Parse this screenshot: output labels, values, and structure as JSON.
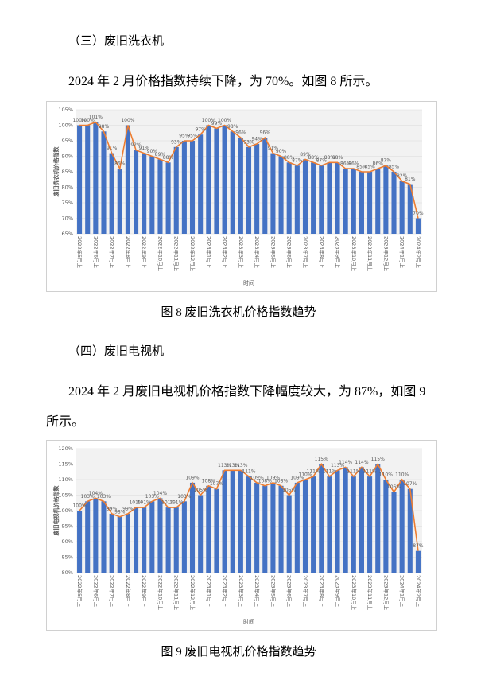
{
  "section3": {
    "heading": "（三）废旧洗衣机",
    "paragraph": "2024 年 2 月价格指数持续下降，为 70%。如图 8 所示。",
    "caption": "图 8  废旧洗衣机价格指数趋势"
  },
  "section4": {
    "heading": "（四）废旧电视机",
    "paragraph": "2024 年 2 月废旧电视机价格指数下降幅度较大，为 87%，如图 9 所示。",
    "caption": "图 9  废旧电视机价格指数趋势"
  },
  "chart_data": [
    {
      "type": "bar_line",
      "ylabel": "废旧洗衣机价格指数",
      "xlabel": "时间",
      "categories": [
        "2022年5月上",
        null,
        "2022年6月上",
        null,
        "2022年7月上",
        null,
        "2022年8月上",
        null,
        "2022年9月上",
        null,
        "2022年10月上",
        null,
        "2022年11月上",
        null,
        "2022年12月上",
        null,
        "2023年1月上",
        null,
        "2023年2月上",
        null,
        "2023年3月上",
        null,
        "2023年4月上",
        null,
        "2023年5月上",
        null,
        "2023年6月上",
        null,
        "2023年7月上",
        null,
        "2023年8月上",
        null,
        "2023年9月上",
        null,
        "2023年10月上",
        null,
        "2023年11月上",
        null,
        "2023年12月上",
        null,
        "2024年1月上",
        null,
        "2024年2月上"
      ],
      "values": [
        100,
        100,
        101,
        98,
        91,
        86,
        100,
        92,
        91,
        90,
        89,
        88,
        93,
        95,
        95,
        97,
        100,
        99,
        100,
        98,
        96,
        93,
        94,
        96,
        91,
        90,
        88,
        87,
        89,
        88,
        87,
        88,
        88,
        86,
        86,
        85,
        85,
        86,
        87,
        85,
        82,
        81,
        70
      ],
      "value_labels": [
        "100%",
        "100%",
        "101%",
        "98%",
        "91%",
        "86%",
        "100%",
        "92%",
        "91%",
        "90%",
        "89%",
        "88%",
        "93%",
        "95%",
        "95%",
        "97%",
        "100%",
        "99%",
        "100%",
        "98%",
        "96%",
        "93%",
        "94%",
        "96%",
        "91%",
        "90%",
        "88%",
        "87%",
        "89%",
        "88%",
        "87%",
        "88%",
        "88%",
        "86%",
        "86%",
        "85%",
        "85%",
        "86%",
        "87%",
        "85%",
        "82%",
        "81%",
        "70%"
      ],
      "bar_color": "#4472c4",
      "line_color": "#ed7d31",
      "ylim": [
        65,
        105
      ],
      "yticks": [
        {
          "value": 65,
          "label": "65%"
        },
        {
          "value": 70,
          "label": "70%"
        },
        {
          "value": 75,
          "label": "75%"
        },
        {
          "value": 80,
          "label": "80%"
        },
        {
          "value": 85,
          "label": "85%"
        },
        {
          "value": 90,
          "label": "90%"
        },
        {
          "value": 95,
          "label": "95%"
        },
        {
          "value": 100,
          "label": "100%"
        },
        {
          "value": 105,
          "label": "105%"
        }
      ],
      "grid": true
    },
    {
      "type": "bar_line",
      "ylabel": "废旧电视机价格指数",
      "xlabel": "时间",
      "categories": [
        "2022年5月上",
        null,
        "2022年6月上",
        null,
        "2022年7月上",
        null,
        "2022年8月上",
        null,
        "2022年9月上",
        null,
        "2022年10月上",
        null,
        "2022年11月上",
        null,
        "2022年12月上",
        null,
        "2023年1月上",
        null,
        "2023年2月上",
        null,
        "2023年3月上",
        null,
        "2023年4月上",
        null,
        "2023年5月上",
        null,
        "2023年6月上",
        null,
        "2023年7月上",
        null,
        "2023年8月上",
        null,
        "2023年9月上",
        null,
        "2023年10月上",
        null,
        "2023年11月上",
        null,
        "2023年12月上",
        null,
        "2024年1月上",
        null,
        "2024年2月上"
      ],
      "values": [
        100,
        103,
        104,
        103,
        99,
        98,
        99,
        101,
        101,
        103,
        104,
        101,
        101,
        103,
        109,
        105,
        108,
        107,
        113,
        113,
        113,
        111,
        109,
        108,
        109,
        108,
        105,
        109,
        110,
        111,
        115,
        111,
        113,
        114,
        111,
        114,
        111,
        115,
        110,
        106,
        110,
        107,
        87
      ],
      "value_labels": [
        "100%",
        "103%",
        "104%",
        "103%",
        "99%",
        "98%",
        "99%",
        "101%",
        "101%",
        "103%",
        "104%",
        "101%",
        "101%",
        "103%",
        "109%",
        "105%",
        "108%",
        "107%",
        "113%",
        "113%",
        "113%",
        "111%",
        "109%",
        "108%",
        "109%",
        "108%",
        "105%",
        "109%",
        "110%",
        "111%",
        "115%",
        "111%",
        "113%",
        "114%",
        "111%",
        "114%",
        "111%",
        "115%",
        "110%",
        "106%",
        "110%",
        "107%",
        "87%"
      ],
      "bar_color": "#4472c4",
      "line_color": "#ed7d31",
      "ylim": [
        80,
        120
      ],
      "yticks": [
        {
          "value": 80,
          "label": "80%"
        },
        {
          "value": 85,
          "label": "85%"
        },
        {
          "value": 90,
          "label": "90%"
        },
        {
          "value": 95,
          "label": "95%"
        },
        {
          "value": 100,
          "label": "100%"
        },
        {
          "value": 105,
          "label": "105%"
        },
        {
          "value": 110,
          "label": "110%"
        },
        {
          "value": 115,
          "label": "115%"
        },
        {
          "value": 120,
          "label": "120%"
        }
      ],
      "grid": true
    }
  ]
}
